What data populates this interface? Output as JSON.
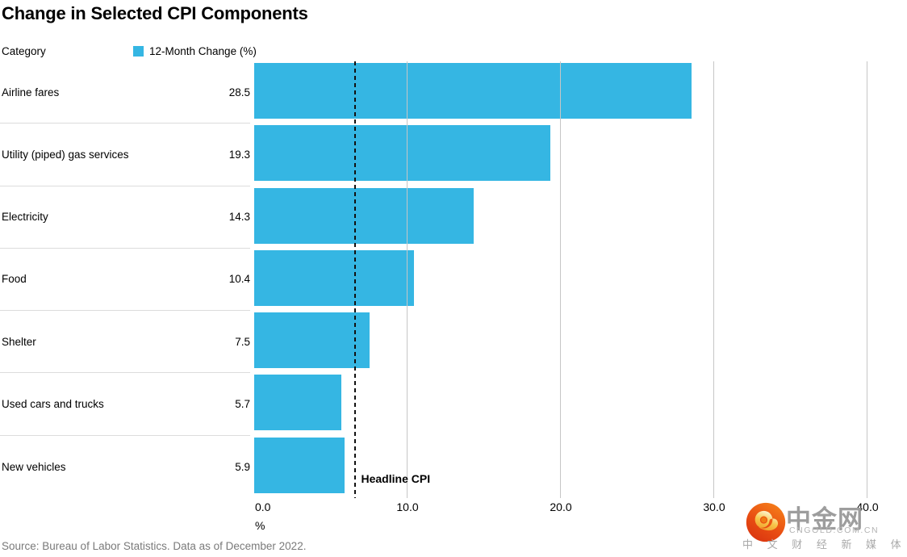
{
  "title": "Change in Selected CPI Components",
  "columns": {
    "category_label": "Category"
  },
  "legend": {
    "label": "12-Month Change (%)"
  },
  "chart_data": {
    "type": "bar",
    "orientation": "horizontal",
    "title": "Change in Selected CPI Components",
    "series_name": "12-Month Change (%)",
    "categories": [
      "Airline fares",
      "Utility (piped) gas services",
      "Electricity",
      "Food",
      "Shelter",
      "Used cars and trucks",
      "New vehicles"
    ],
    "values": [
      28.5,
      19.3,
      14.3,
      10.4,
      7.5,
      5.7,
      5.9
    ],
    "xlabel": "%",
    "xlim": [
      0,
      40
    ],
    "xticks": [
      "0.0",
      "10.0",
      "20.0",
      "30.0",
      "40.0"
    ],
    "xtick_values": [
      0,
      10,
      20,
      30,
      40
    ],
    "grid": true,
    "legend_position": "top",
    "reference_line": {
      "label": "Headline CPI",
      "value": 6.5,
      "style": "dashed"
    }
  },
  "source": "Source: Bureau of Labor Statistics. Data as of December 2022.",
  "watermark": {
    "name_zh": "中金网",
    "domain": "CNGOLD.COM.CN",
    "tagline_zh": "中 文 财 经 新 媒 体"
  },
  "colors": {
    "bar": "#35b6e3",
    "grid": "#c6c6c6",
    "separator": "#dcdcdc",
    "reference_line": "#111111",
    "source_text": "#7a7a7a",
    "watermark_text": "#9d9d9d",
    "logo_orange": "#e94e12",
    "logo_gold": "#f7c64a"
  }
}
